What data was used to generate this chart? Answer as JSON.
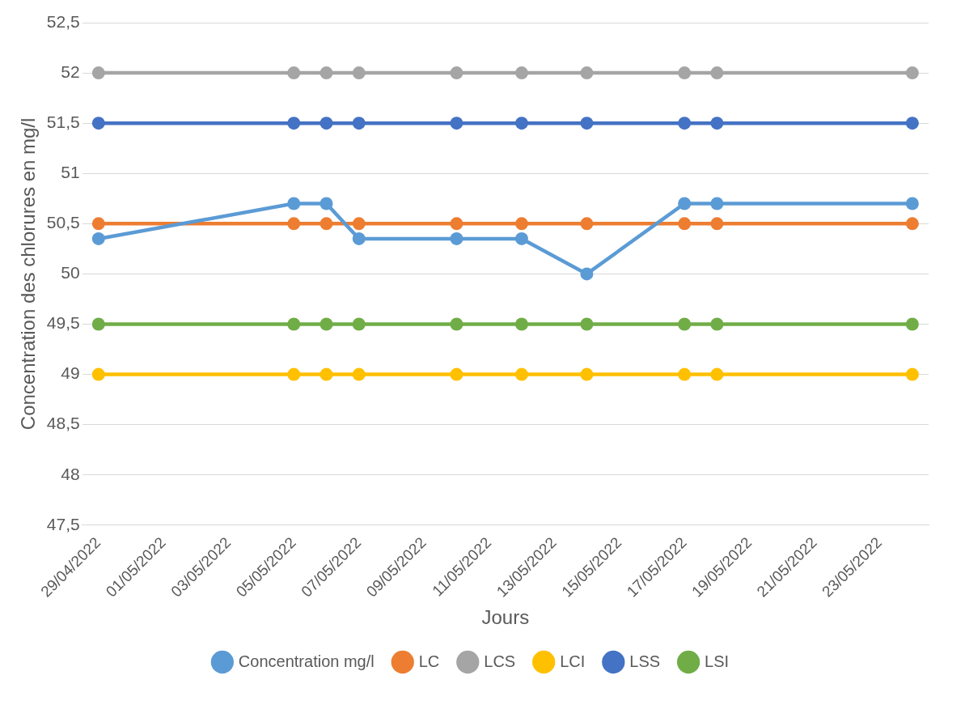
{
  "chart_data": {
    "type": "line",
    "xlabel": "Jours",
    "ylabel": "Concentration des chlorures en mg/l",
    "x": [
      "2022-04-29",
      "2022-05-05",
      "2022-05-06",
      "2022-05-07",
      "2022-05-10",
      "2022-05-12",
      "2022-05-14",
      "2022-05-17",
      "2022-05-18",
      "2022-05-24"
    ],
    "series": [
      {
        "name": "Concentration mg/l",
        "color": "#5b9bd5",
        "values": [
          50.35,
          50.7,
          50.7,
          50.35,
          50.35,
          50.35,
          50.0,
          50.7,
          50.7,
          50.7
        ]
      },
      {
        "name": "LC",
        "color": "#ed7d31",
        "values": [
          50.5,
          50.5,
          50.5,
          50.5,
          50.5,
          50.5,
          50.5,
          50.5,
          50.5,
          50.5
        ]
      },
      {
        "name": "LCS",
        "color": "#a5a5a5",
        "values": [
          52,
          52,
          52,
          52,
          52,
          52,
          52,
          52,
          52,
          52
        ]
      },
      {
        "name": "LCI",
        "color": "#ffc000",
        "values": [
          49,
          49,
          49,
          49,
          49,
          49,
          49,
          49,
          49,
          49
        ]
      },
      {
        "name": "LSS",
        "color": "#4472c4",
        "values": [
          51.5,
          51.5,
          51.5,
          51.5,
          51.5,
          51.5,
          51.5,
          51.5,
          51.5,
          51.5
        ]
      },
      {
        "name": "LSI",
        "color": "#70ad47",
        "values": [
          49.5,
          49.5,
          49.5,
          49.5,
          49.5,
          49.5,
          49.5,
          49.5,
          49.5,
          49.5
        ]
      }
    ],
    "xlim": [
      "2022-04-28T12:00",
      "2022-05-24T12:00"
    ],
    "xticks": [
      {
        "value": "2022-04-29",
        "label": "29/04/2022"
      },
      {
        "value": "2022-05-01",
        "label": "01/05/2022"
      },
      {
        "value": "2022-05-03",
        "label": "03/05/2022"
      },
      {
        "value": "2022-05-05",
        "label": "05/05/2022"
      },
      {
        "value": "2022-05-07",
        "label": "07/05/2022"
      },
      {
        "value": "2022-05-09",
        "label": "09/05/2022"
      },
      {
        "value": "2022-05-11",
        "label": "11/05/2022"
      },
      {
        "value": "2022-05-13",
        "label": "13/05/2022"
      },
      {
        "value": "2022-05-15",
        "label": "15/05/2022"
      },
      {
        "value": "2022-05-17",
        "label": "17/05/2022"
      },
      {
        "value": "2022-05-19",
        "label": "19/05/2022"
      },
      {
        "value": "2022-05-21",
        "label": "21/05/2022"
      },
      {
        "value": "2022-05-23",
        "label": "23/05/2022"
      }
    ],
    "ylim": [
      47.5,
      52.5
    ],
    "yticks": [
      {
        "value": 47.5,
        "label": "47,5"
      },
      48,
      {
        "value": 48.5,
        "label": "48,5"
      },
      49,
      {
        "value": 49.5,
        "label": "49,5"
      },
      50,
      {
        "value": 50.5,
        "label": "50,5"
      },
      51,
      {
        "value": 51.5,
        "label": "51,5"
      },
      52,
      {
        "value": 52.5,
        "label": "52,5"
      }
    ],
    "grid": "y",
    "legend": "bottom",
    "marker": "circle",
    "line_style": "solid"
  }
}
